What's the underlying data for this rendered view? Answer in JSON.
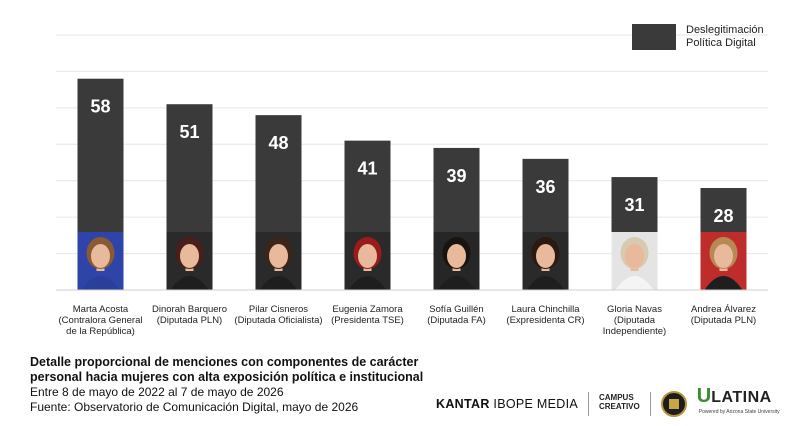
{
  "chart_data": {
    "type": "bar",
    "categories": [
      "Marta Acosta (Contralora General de la República)",
      "Dinorah Barquero (Diputada PLN)",
      "Pilar Cisneros (Diputada Oficialista)",
      "Eugenia Zamora (Presidenta TSE)",
      "Sofía Guillén (Diputada FA)",
      "Laura Chinchilla (Expresidenta CR)",
      "Gloria Navas (Diputada Independiente)",
      "Andrea Álvarez (Diputada PLN)"
    ],
    "category_lines": [
      [
        "Marta Acosta",
        "(Contralora General",
        "de la República)"
      ],
      [
        "Dinorah Barquero",
        "(Diputada PLN)"
      ],
      [
        "Pilar Cisneros",
        "(Diputada Oficialista)"
      ],
      [
        "Eugenia  Zamora",
        "(Presidenta TSE)"
      ],
      [
        "Sofía Guillén",
        "(Diputada FA)"
      ],
      [
        "Laura Chinchilla",
        "(Expresidenta CR)"
      ],
      [
        "Gloria Navas",
        "(Diputada",
        "Independiente)"
      ],
      [
        "Andrea Álvarez",
        "(Diputada PLN)"
      ]
    ],
    "series": [
      {
        "name": "Deslegitimación Política Digital",
        "values": [
          58,
          51,
          48,
          41,
          39,
          36,
          31,
          28
        ],
        "color": "#3a3a3a"
      }
    ],
    "ylim": [
      0,
      70
    ],
    "grid": true,
    "legend_position": "top-right",
    "data_labels": true,
    "photo_backgrounds": [
      "#2e44a8",
      "#2a2a2a",
      "#2a2a2a",
      "#2a2a2a",
      "#262626",
      "#2a2a2a",
      "#e4e4e4",
      "#bf2c2c"
    ],
    "skin_color": "#e8b99a",
    "hair_colors": [
      "#8a5a33",
      "#4a1e1a",
      "#3a2517",
      "#9b1a1a",
      "#1a1410",
      "#2a1a10",
      "#d8cab0",
      "#b78a55"
    ]
  },
  "legend": {
    "line1": "Deslegitimación",
    "line2": "Política Digital"
  },
  "footer": {
    "title_line1": "Detalle proporcional de menciones con componentes de carácter",
    "title_line2": "personal hacia mujeres con alta exposición política e institucional",
    "date_range": "Entre 8 de mayo de 2022 al 7 de mayo de 2026",
    "source": "Fuente: Observatorio de Comunicación Digital, mayo de 2026"
  },
  "logos": {
    "kantar_bold": "KANTAR",
    "kantar_rest": " IBOPE MEDIA",
    "campus_line1": "CAMPUS",
    "campus_line2": "CREATIVO",
    "ulatina_u": "U",
    "ulatina_rest": "LATINA",
    "ulatina_tagline": "Powered by Arizona State University"
  },
  "colors": {
    "bar": "#3a3a3a",
    "grid": "#e6e6e6",
    "label": "#ffffff"
  }
}
